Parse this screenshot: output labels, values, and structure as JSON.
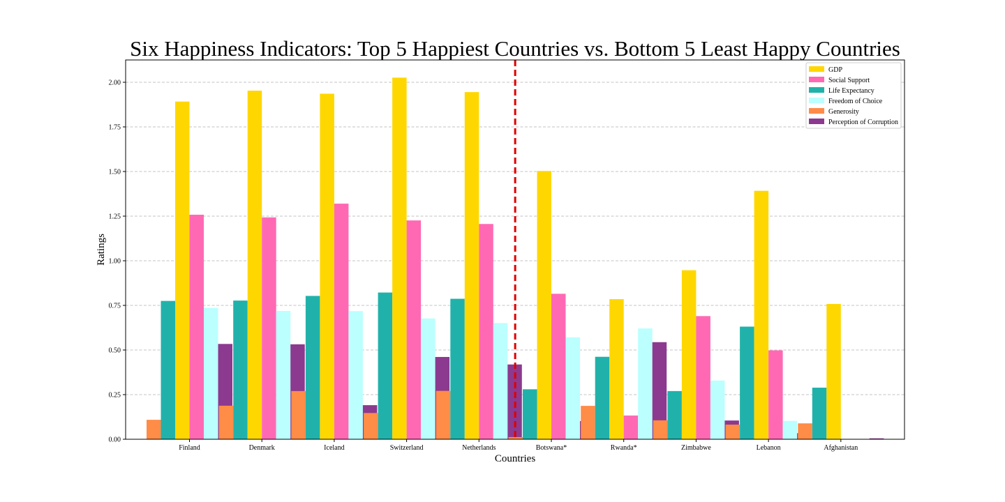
{
  "chart_data": {
    "type": "bar",
    "title": "Six Happiness Indicators: Top 5 Happiest Countries vs. Bottom 5 Least Happy Countries",
    "xlabel": "Countries",
    "ylabel": "Ratings",
    "ylim": [
      0,
      2.125
    ],
    "yticks": [
      0.0,
      0.25,
      0.5,
      0.75,
      1.0,
      1.25,
      1.5,
      1.75,
      2.0
    ],
    "ytick_labels": [
      "0.00",
      "0.25",
      "0.50",
      "0.75",
      "1.00",
      "1.25",
      "1.50",
      "1.75",
      "2.00"
    ],
    "grid": "horizontal dashed",
    "legend_position": "upper right",
    "categories": [
      "Finland",
      "Denmark",
      "Iceland",
      "Switzerland",
      "Netherlands",
      "Botswana*",
      "Rwanda*",
      "Zimbabwe",
      "Lebanon",
      "Afghanistan"
    ],
    "series": [
      {
        "name": "GDP",
        "color": "#FFD700",
        "values": [
          1.892,
          1.953,
          1.936,
          2.026,
          1.945,
          1.503,
          0.785,
          0.947,
          1.392,
          0.758
        ]
      },
      {
        "name": "Social Support",
        "color": "#FF69B4",
        "values": [
          1.258,
          1.243,
          1.32,
          1.226,
          1.206,
          0.815,
          0.133,
          0.69,
          0.498,
          0.0
        ]
      },
      {
        "name": "Life Expectancy",
        "color": "#20B2AA",
        "values": [
          0.775,
          0.777,
          0.803,
          0.822,
          0.787,
          0.28,
          0.462,
          0.27,
          0.631,
          0.289
        ]
      },
      {
        "name": "Freedom of Choice",
        "color": "#BBFFFF",
        "values": [
          0.736,
          0.719,
          0.718,
          0.677,
          0.651,
          0.571,
          0.621,
          0.329,
          0.103,
          0.0
        ]
      },
      {
        "name": "Generosity",
        "color": "#FF8C47",
        "values": [
          0.109,
          0.188,
          0.27,
          0.147,
          0.271,
          0.012,
          0.187,
          0.106,
          0.082,
          0.089
        ]
      },
      {
        "name": "Perception of Corruption",
        "color": "#8B3A8F",
        "values": [
          0.534,
          0.532,
          0.191,
          0.461,
          0.419,
          0.102,
          0.544,
          0.105,
          0.034,
          0.005
        ]
      }
    ],
    "divider": {
      "after_category_index": 4,
      "color": "#E00000"
    }
  }
}
